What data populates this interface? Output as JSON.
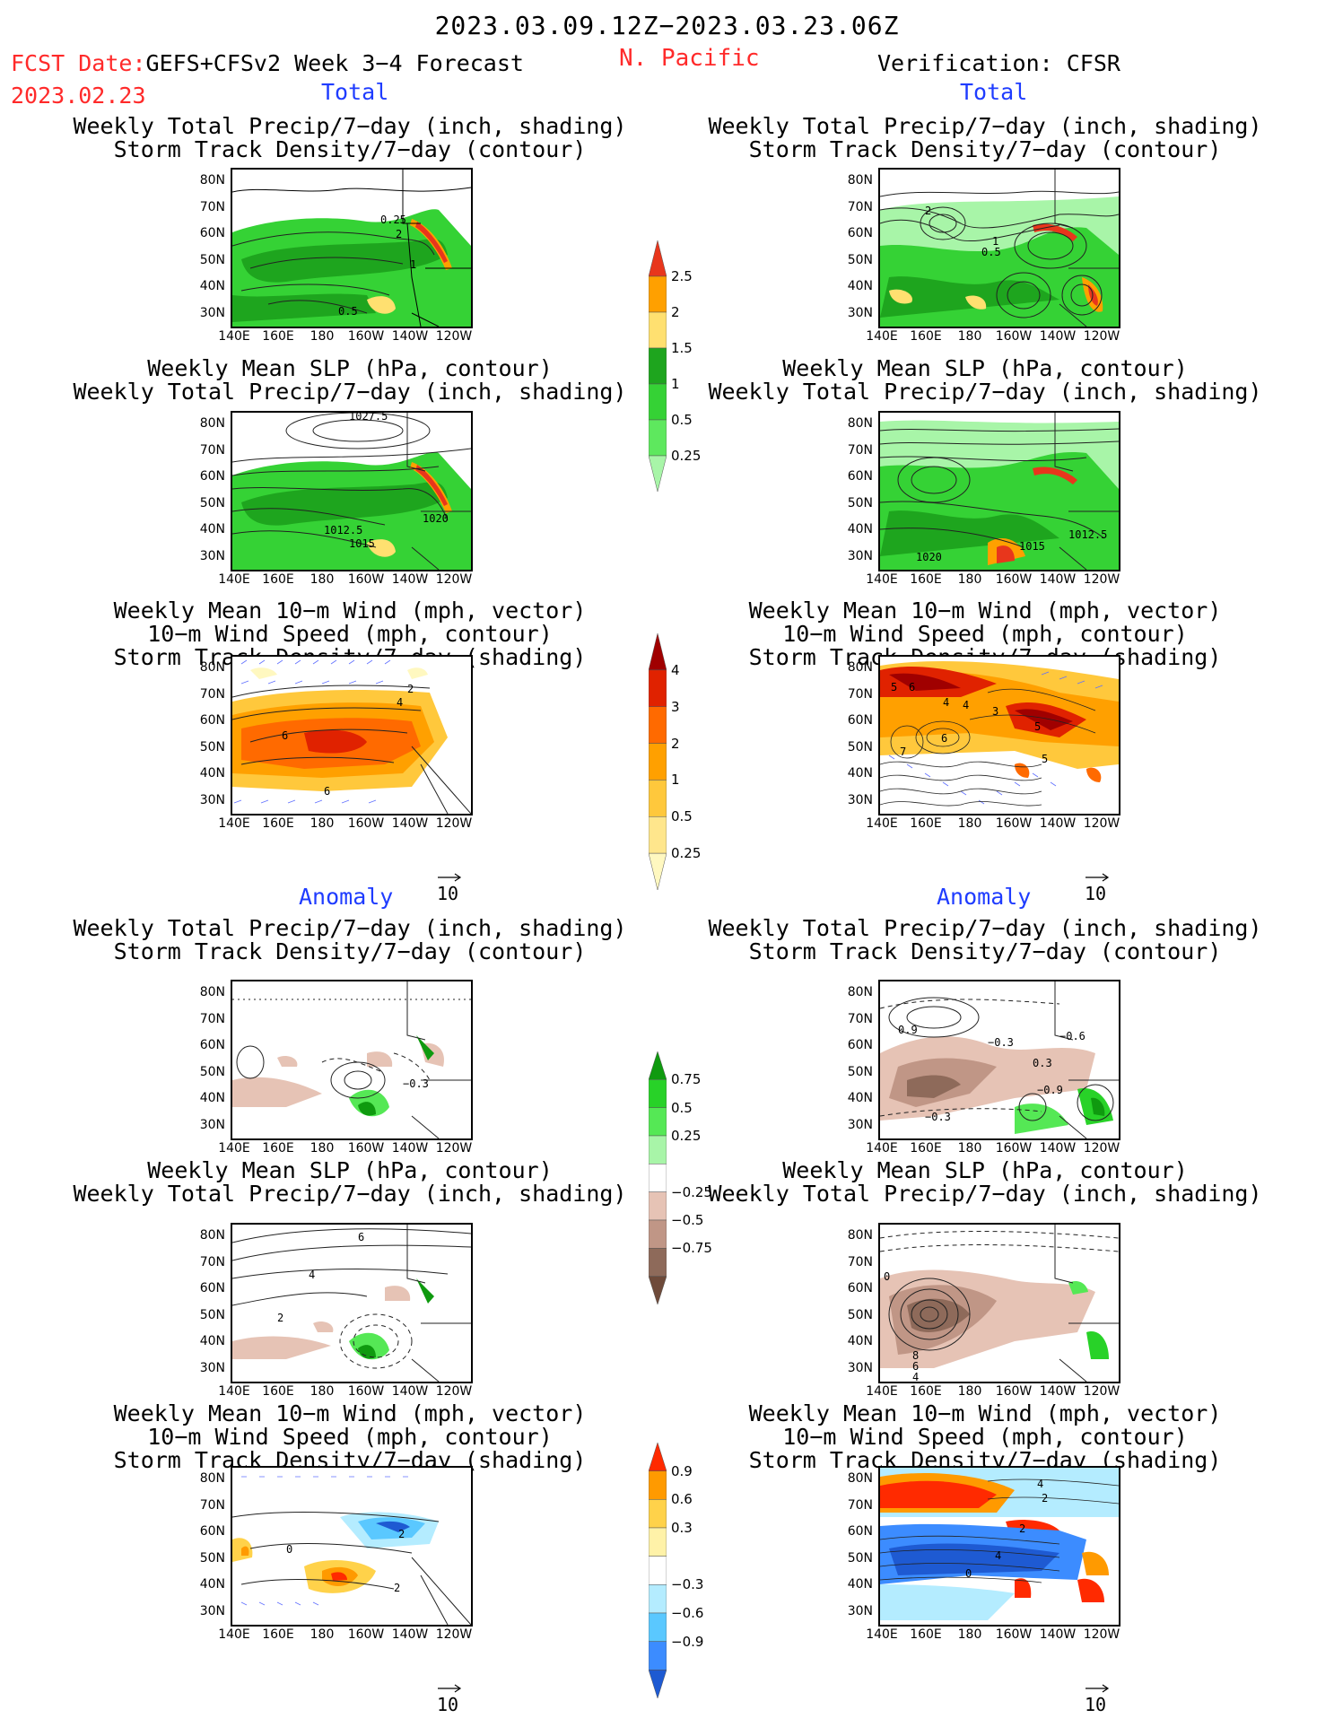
{
  "header": {
    "date_range": "2023.03.09.12Z−2023.03.23.06Z",
    "fcst_label": "FCST Date:",
    "fcst_model": "GEFS+CFSv2 Week 3−4 Forecast",
    "fcst_date": "2023.02.23",
    "region": "N. Pacific",
    "verification": "Verification: CFSR"
  },
  "sections": {
    "total": "Total",
    "anomaly": "Anomaly"
  },
  "titles": {
    "precip_storm": [
      "Weekly Total Precip/7−day (inch, shading)",
      "Storm Track Density/7−day (contour)"
    ],
    "slp_precip": [
      "Weekly Mean SLP (hPa, contour)",
      "Weekly Total Precip/7−day (inch, shading)"
    ],
    "wind_storm": [
      "Weekly Mean 10−m Wind (mph, vector)",
      "10−m Wind Speed (mph, contour)",
      "Storm Track Density/7−day (shading)"
    ]
  },
  "axes": {
    "lat_labels": [
      "80N",
      "70N",
      "60N",
      "50N",
      "40N",
      "30N"
    ],
    "lon_labels": [
      "140E",
      "160E",
      "180",
      "160W",
      "140W",
      "120W"
    ]
  },
  "ref_vector": "10",
  "colorbars": {
    "precip_total": {
      "labels": [
        "2.5",
        "2",
        "1.5",
        "1",
        "0.5",
        "0.25"
      ],
      "colors": [
        "#e8361c",
        "#ffa000",
        "#ffe070",
        "#1ea51e",
        "#35d235",
        "#5ee85e",
        "#a8f5a8"
      ]
    },
    "storm_total": {
      "labels": [
        "4",
        "3",
        "2",
        "1",
        "0.5",
        "0.25"
      ],
      "colors": [
        "#a00000",
        "#e02200",
        "#ff6a00",
        "#ffa000",
        "#ffc83c",
        "#ffe68c",
        "#fff8c0"
      ]
    },
    "precip_anom": {
      "labels": [
        "0.75",
        "0.5",
        "0.25",
        "−0.25",
        "−0.5",
        "−0.75"
      ],
      "colors": [
        "#0f9a0f",
        "#28d228",
        "#55e855",
        "#a8f5a8",
        "#ffffff",
        "#e6c3b5",
        "#c09686",
        "#8e6a5a",
        "#6e4a3a"
      ]
    },
    "wind_anom": {
      "labels": [
        "0.9",
        "0.6",
        "0.3",
        "−0.3",
        "−0.6",
        "−0.9"
      ],
      "colors": [
        "#ff2a00",
        "#ff9a00",
        "#ffd24a",
        "#fff2a8",
        "#ffffff",
        "#b4ecff",
        "#5ac8ff",
        "#3c8cff",
        "#1e5ad2"
      ]
    }
  },
  "contour_labels": {
    "f1": [
      "0.25",
      "2",
      "1",
      "0.5"
    ],
    "f2": [
      "1027.5",
      "1020",
      "1012.5",
      "1015"
    ],
    "f3": [
      "2",
      "4",
      "6",
      "6"
    ],
    "f4": [
      "−0.3"
    ],
    "f5": [
      "6",
      "4",
      "2"
    ],
    "f6": [
      "2",
      "0",
      "2"
    ],
    "v1": [
      "2",
      "1",
      "0.5"
    ],
    "v2": [
      "1012.5",
      "1015",
      "1020"
    ],
    "v3": [
      "5",
      "6",
      "4",
      "4",
      "3",
      "5",
      "6",
      "5",
      "7"
    ],
    "v4": [
      "0.9",
      "−0.3",
      "−0.6",
      "0.3",
      "−0.9",
      "−0.3"
    ],
    "v5": [
      "0",
      "8",
      "6",
      "4"
    ],
    "v6": [
      "4",
      "2",
      "2",
      "4",
      "0"
    ]
  }
}
